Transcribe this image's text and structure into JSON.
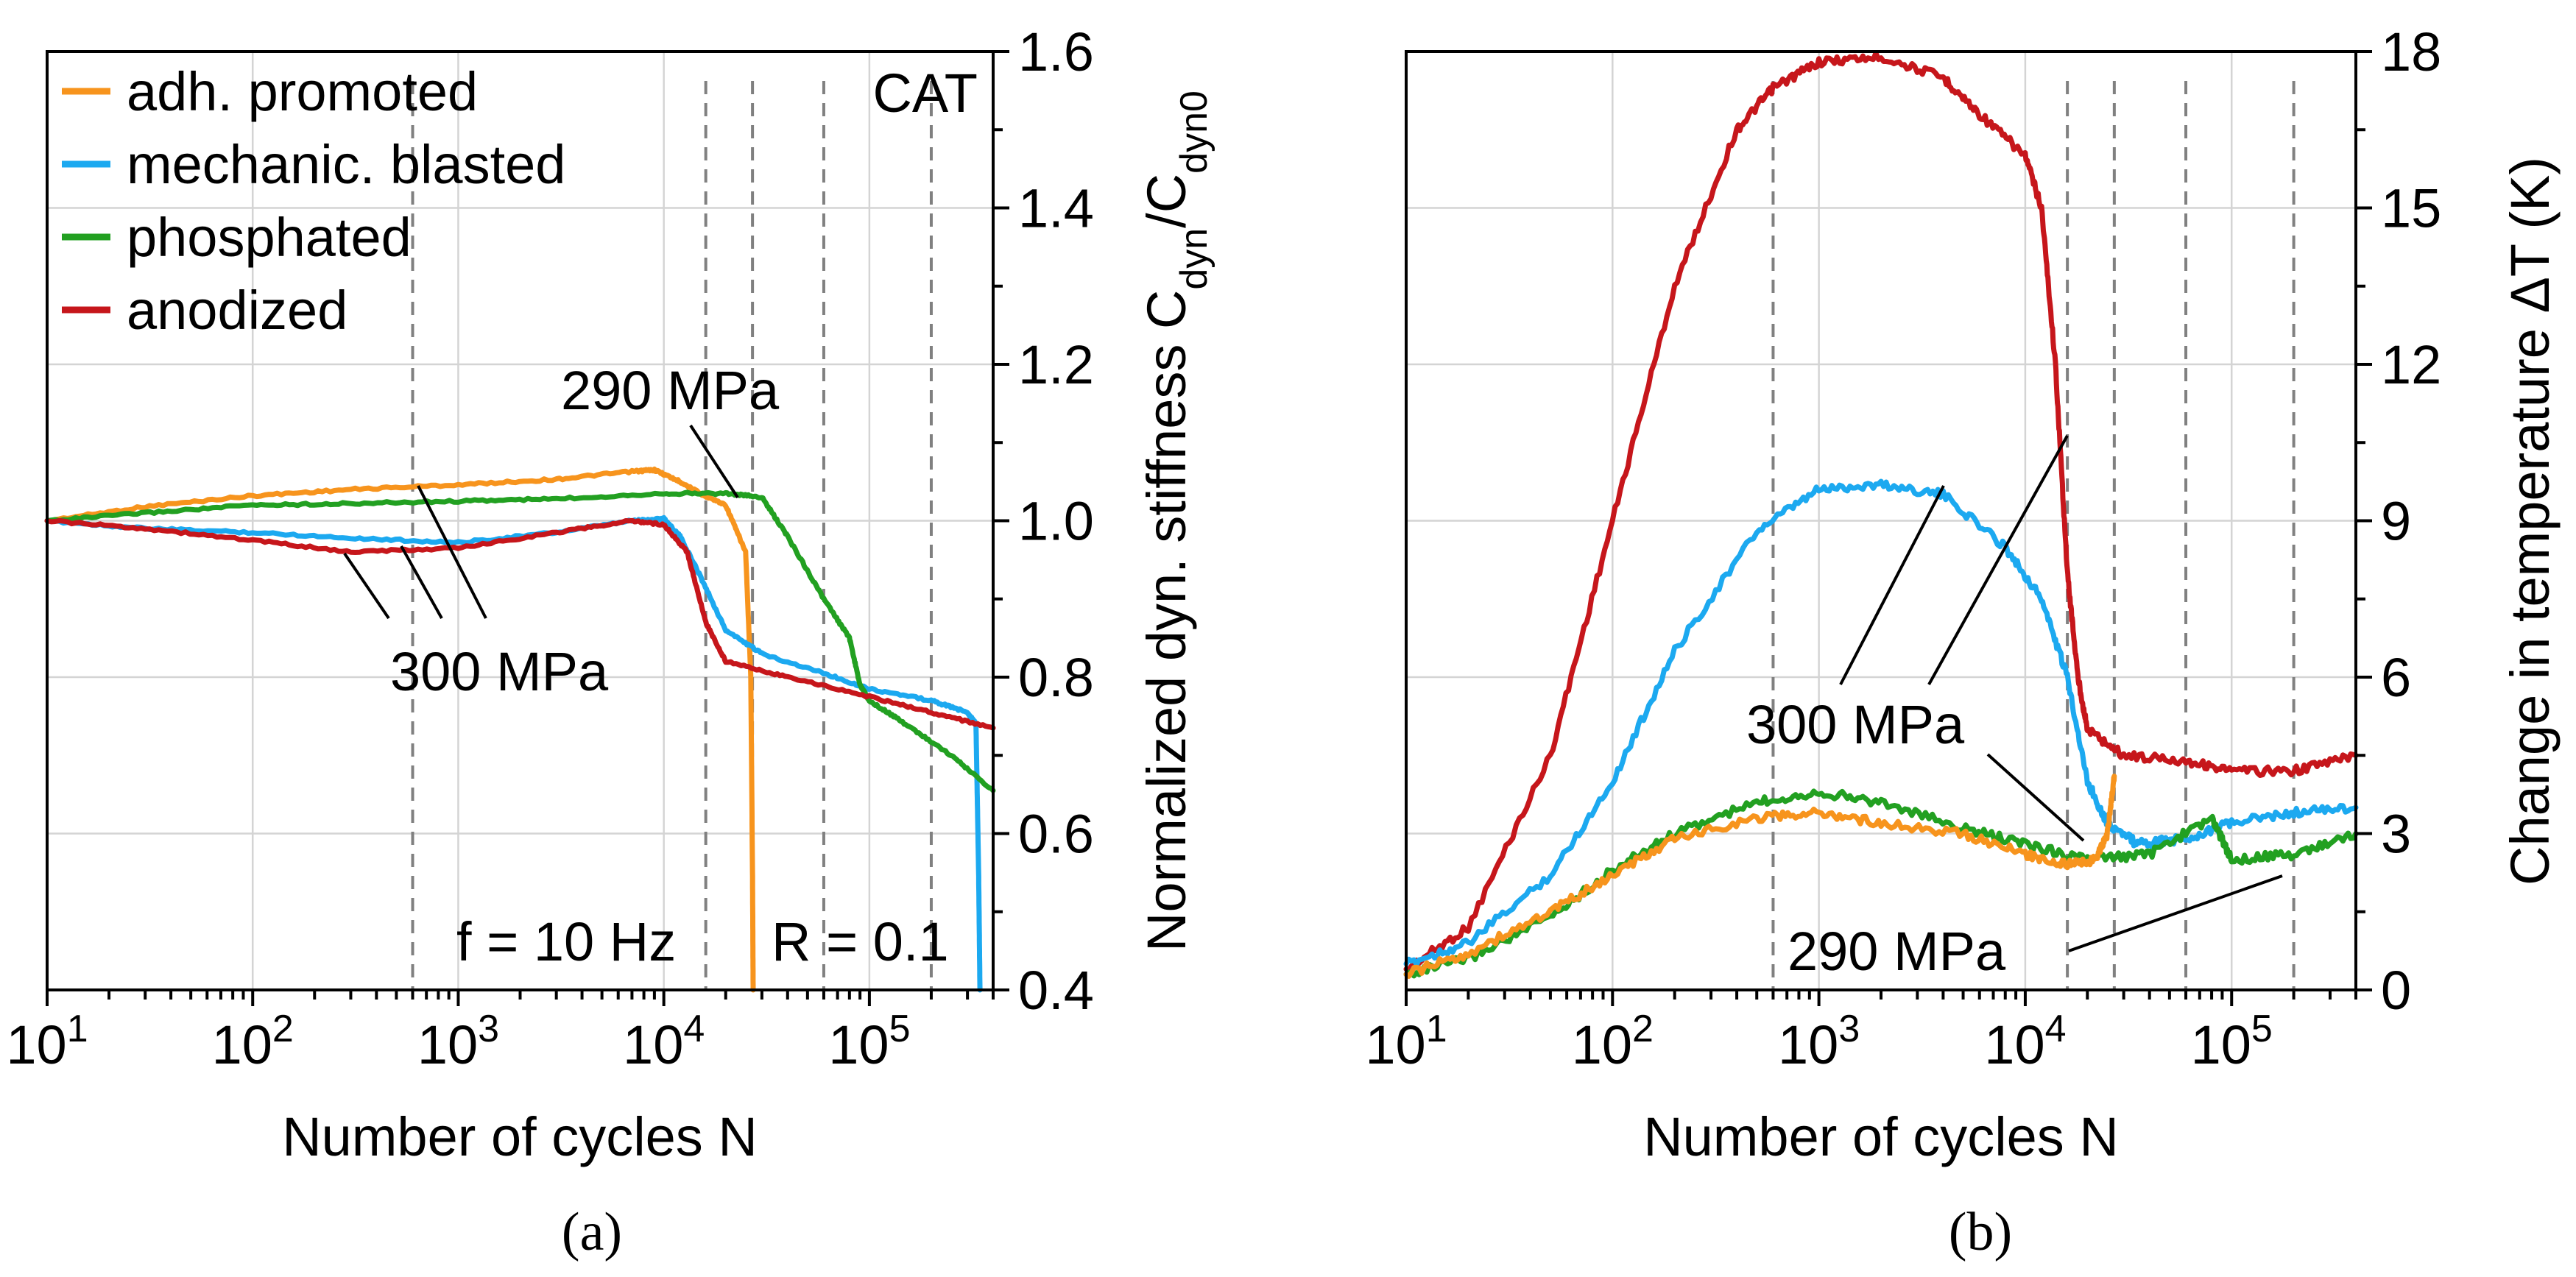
{
  "chart_data": [
    {
      "type": "line",
      "panel_label": "(a)",
      "xlabel": "Number of cycles N",
      "ylabel_main": "Normalized dyn. stiffness C",
      "ylabel_sub1": "dyn",
      "ylabel_mid": "/C",
      "ylabel_sub2": "dyn0",
      "x_scale": "log",
      "xlim": [
        10,
        400000
      ],
      "ylim": [
        0.4,
        1.6
      ],
      "y_axis_side": "right",
      "grid": true,
      "x_ticks": [
        {
          "value": 10,
          "base": "10",
          "exp": "1"
        },
        {
          "value": 100,
          "base": "10",
          "exp": "2"
        },
        {
          "value": 1000,
          "base": "10",
          "exp": "3"
        },
        {
          "value": 10000,
          "base": "10",
          "exp": "4"
        },
        {
          "value": 100000,
          "base": "10",
          "exp": "5"
        }
      ],
      "y_ticks": [
        {
          "value": 0.4,
          "label": "0.4"
        },
        {
          "value": 0.6,
          "label": "0.6"
        },
        {
          "value": 0.8,
          "label": "0.8"
        },
        {
          "value": 1.0,
          "label": "1.0"
        },
        {
          "value": 1.2,
          "label": "1.2"
        },
        {
          "value": 1.4,
          "label": "1.4"
        },
        {
          "value": 1.6,
          "label": "1.6"
        }
      ],
      "legend_position": "top-left",
      "corner_label": "CAT",
      "condition_labels": [
        "f = 10 Hz",
        "R = 0.1"
      ],
      "annotations": [
        "290 MPa",
        "300 MPa"
      ],
      "vertical_markers": [
        600,
        16000,
        27000,
        60000,
        200000
      ],
      "series": [
        {
          "name": "adh. promoted",
          "color": "#f7941d",
          "points": [
            [
              10,
              1.0
            ],
            [
              30,
              1.018
            ],
            [
              100,
              1.032
            ],
            [
              300,
              1.04
            ],
            [
              1000,
              1.046
            ],
            [
              3000,
              1.053
            ],
            [
              7000,
              1.063
            ],
            [
              9000,
              1.065
            ],
            [
              12000,
              1.05
            ],
            [
              15000,
              1.035
            ],
            [
              20000,
              1.02
            ],
            [
              25000,
              0.96
            ],
            [
              26500,
              0.8
            ],
            [
              27000,
              0.55
            ],
            [
              27200,
              0.4
            ]
          ]
        },
        {
          "name": "mechanic. blasted",
          "color": "#1ca9f0",
          "points": [
            [
              10,
              1.0
            ],
            [
              30,
              0.99
            ],
            [
              100,
              0.985
            ],
            [
              300,
              0.978
            ],
            [
              1000,
              0.972
            ],
            [
              3000,
              0.985
            ],
            [
              7000,
              1.0
            ],
            [
              10000,
              1.003
            ],
            [
              12000,
              0.98
            ],
            [
              15000,
              0.93
            ],
            [
              20000,
              0.86
            ],
            [
              30000,
              0.83
            ],
            [
              60000,
              0.805
            ],
            [
              100000,
              0.785
            ],
            [
              200000,
              0.77
            ],
            [
              300000,
              0.755
            ],
            [
              330000,
              0.74
            ],
            [
              340000,
              0.55
            ],
            [
              345000,
              0.4
            ]
          ]
        },
        {
          "name": "phosphated",
          "color": "#22a021",
          "points": [
            [
              10,
              1.0
            ],
            [
              30,
              1.01
            ],
            [
              100,
              1.02
            ],
            [
              300,
              1.022
            ],
            [
              1000,
              1.025
            ],
            [
              3000,
              1.028
            ],
            [
              10000,
              1.035
            ],
            [
              20000,
              1.035
            ],
            [
              30000,
              1.03
            ],
            [
              40000,
              0.98
            ],
            [
              60000,
              0.9
            ],
            [
              80000,
              0.85
            ],
            [
              90000,
              0.79
            ],
            [
              100000,
              0.77
            ],
            [
              150000,
              0.74
            ],
            [
              250000,
              0.7
            ],
            [
              400000,
              0.655
            ]
          ]
        },
        {
          "name": "anodized",
          "color": "#c6161b",
          "points": [
            [
              10,
              1.0
            ],
            [
              30,
              0.99
            ],
            [
              100,
              0.975
            ],
            [
              300,
              0.96
            ],
            [
              1000,
              0.965
            ],
            [
              3000,
              0.985
            ],
            [
              7000,
              1.0
            ],
            [
              10000,
              0.995
            ],
            [
              13000,
              0.96
            ],
            [
              16000,
              0.87
            ],
            [
              20000,
              0.82
            ],
            [
              40000,
              0.8
            ],
            [
              100000,
              0.775
            ],
            [
              200000,
              0.755
            ],
            [
              400000,
              0.735
            ]
          ]
        }
      ]
    },
    {
      "type": "line",
      "panel_label": "(b)",
      "xlabel": "Number of cycles N",
      "ylabel": "Change in temperature ΔT (K)",
      "x_scale": "log",
      "xlim": [
        10,
        400000
      ],
      "ylim": [
        0,
        18
      ],
      "y_axis_side": "right",
      "grid": true,
      "x_ticks": [
        {
          "value": 10,
          "base": "10",
          "exp": "1"
        },
        {
          "value": 100,
          "base": "10",
          "exp": "2"
        },
        {
          "value": 1000,
          "base": "10",
          "exp": "3"
        },
        {
          "value": 10000,
          "base": "10",
          "exp": "4"
        },
        {
          "value": 100000,
          "base": "10",
          "exp": "5"
        }
      ],
      "y_ticks": [
        {
          "value": 0,
          "label": "0"
        },
        {
          "value": 3,
          "label": "3"
        },
        {
          "value": 6,
          "label": "6"
        },
        {
          "value": 9,
          "label": "9"
        },
        {
          "value": 12,
          "label": "12"
        },
        {
          "value": 15,
          "label": "15"
        },
        {
          "value": 18,
          "label": "18"
        }
      ],
      "annotations": [
        "300 MPa",
        "290 MPa"
      ],
      "vertical_markers": [
        600,
        16000,
        27000,
        60000,
        200000
      ],
      "series": [
        {
          "name": "anodized",
          "color": "#c6161b",
          "points": [
            [
              10,
              0.4
            ],
            [
              20,
              1.2
            ],
            [
              50,
              4.5
            ],
            [
              100,
              9
            ],
            [
              200,
              13.5
            ],
            [
              400,
              16.5
            ],
            [
              600,
              17.3
            ],
            [
              1000,
              17.8
            ],
            [
              2000,
              17.9
            ],
            [
              4000,
              17.5
            ],
            [
              6000,
              16.8
            ],
            [
              10000,
              16
            ],
            [
              12000,
              15
            ],
            [
              14000,
              12
            ],
            [
              16000,
              8
            ],
            [
              18000,
              6
            ],
            [
              20000,
              5
            ],
            [
              30000,
              4.5
            ],
            [
              60000,
              4.4
            ],
            [
              100000,
              4.2
            ],
            [
              200000,
              4.2
            ],
            [
              400000,
              4.5
            ]
          ]
        },
        {
          "name": "mechanic. blasted",
          "color": "#1ca9f0",
          "points": [
            [
              10,
              0.5
            ],
            [
              20,
              0.9
            ],
            [
              50,
              2.2
            ],
            [
              100,
              4
            ],
            [
              200,
              6.5
            ],
            [
              500,
              8.8
            ],
            [
              1000,
              9.6
            ],
            [
              2000,
              9.7
            ],
            [
              4000,
              9.5
            ],
            [
              8000,
              8.5
            ],
            [
              12000,
              7.5
            ],
            [
              16000,
              6
            ],
            [
              20000,
              4
            ],
            [
              25000,
              3.2
            ],
            [
              35000,
              2.8
            ],
            [
              60000,
              2.9
            ],
            [
              100000,
              3.2
            ],
            [
              200000,
              3.4
            ],
            [
              400000,
              3.5
            ]
          ]
        },
        {
          "name": "phosphated",
          "color": "#22a021",
          "points": [
            [
              10,
              0.3
            ],
            [
              20,
              0.6
            ],
            [
              50,
              1.4
            ],
            [
              100,
              2.3
            ],
            [
              200,
              3
            ],
            [
              500,
              3.6
            ],
            [
              1000,
              3.8
            ],
            [
              2000,
              3.6
            ],
            [
              5000,
              3.1
            ],
            [
              10000,
              2.8
            ],
            [
              20000,
              2.5
            ],
            [
              40000,
              2.6
            ],
            [
              80000,
              3.3
            ],
            [
              100000,
              2.5
            ],
            [
              200000,
              2.6
            ],
            [
              400000,
              3
            ]
          ]
        },
        {
          "name": "adh. promoted",
          "color": "#f7941d",
          "points": [
            [
              10,
              0.3
            ],
            [
              20,
              0.7
            ],
            [
              50,
              1.5
            ],
            [
              100,
              2.2
            ],
            [
              200,
              2.9
            ],
            [
              500,
              3.3
            ],
            [
              1000,
              3.4
            ],
            [
              2000,
              3.2
            ],
            [
              5000,
              3
            ],
            [
              10000,
              2.6
            ],
            [
              16000,
              2.4
            ],
            [
              22000,
              2.5
            ],
            [
              25000,
              3
            ],
            [
              27000,
              4.1
            ]
          ]
        }
      ]
    }
  ]
}
